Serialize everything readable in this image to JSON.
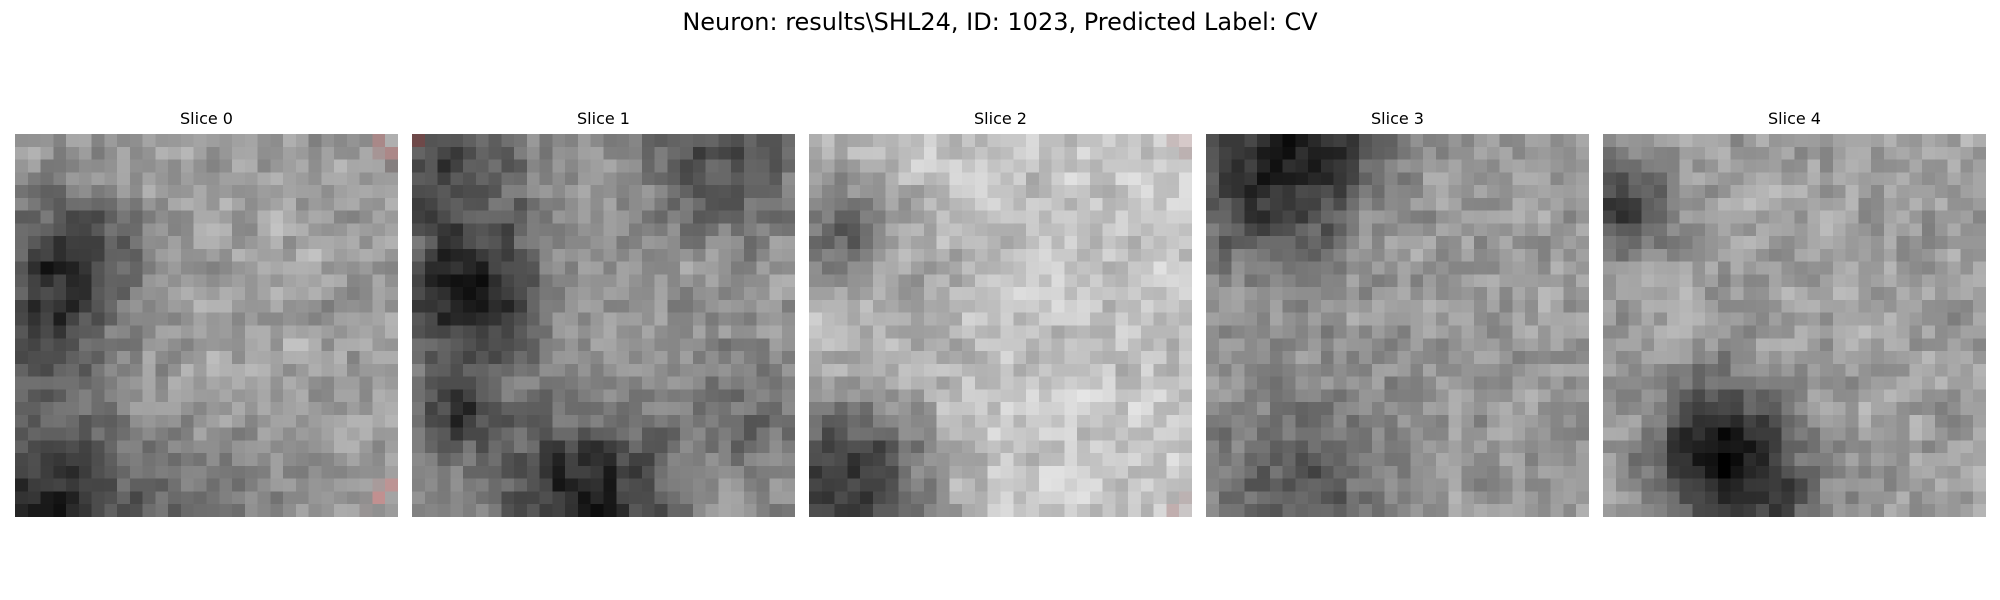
{
  "figure": {
    "title": "Neuron: results\\SHL24, ID: 1023, Predicted Label: CV"
  },
  "slices": [
    {
      "title": "Slice 0",
      "base": 0.62,
      "blobs": [
        [
          0.15,
          0.33,
          0.12,
          0.45
        ],
        [
          0.08,
          0.55,
          0.1,
          0.3
        ],
        [
          0.1,
          0.97,
          0.18,
          0.45
        ],
        [
          0.55,
          0.95,
          0.12,
          0.15
        ]
      ],
      "marks": [
        [
          0.94,
          0.02,
          0.99,
          0.06
        ],
        [
          0.93,
          0.96,
          0.99,
          0.91
        ]
      ],
      "seed": 11
    },
    {
      "title": "Slice 1",
      "base": 0.6,
      "blobs": [
        [
          0.15,
          0.42,
          0.13,
          0.48
        ],
        [
          0.1,
          0.08,
          0.14,
          0.3
        ],
        [
          0.8,
          0.06,
          0.14,
          0.3
        ],
        [
          0.45,
          0.95,
          0.16,
          0.48
        ],
        [
          0.12,
          0.72,
          0.08,
          0.35
        ],
        [
          0.88,
          0.75,
          0.12,
          0.18
        ]
      ],
      "marks": [
        [
          0.01,
          0.02,
          0.03,
          0.01
        ]
      ],
      "seed": 23
    },
    {
      "title": "Slice 2",
      "base": 0.77,
      "blobs": [
        [
          0.1,
          0.9,
          0.16,
          0.55
        ],
        [
          0.05,
          0.25,
          0.1,
          0.35
        ],
        [
          0.25,
          0.35,
          0.15,
          0.12
        ]
      ],
      "marks": [
        [
          0.96,
          0.02,
          0.98,
          0.03
        ],
        [
          0.96,
          0.98,
          0.98,
          0.96
        ]
      ],
      "seed": 37
    },
    {
      "title": "Slice 3",
      "base": 0.6,
      "blobs": [
        [
          0.15,
          0.12,
          0.16,
          0.35
        ],
        [
          0.3,
          0.03,
          0.12,
          0.25
        ],
        [
          0.25,
          0.92,
          0.16,
          0.28
        ]
      ],
      "marks": [],
      "seed": 53
    },
    {
      "title": "Slice 4",
      "base": 0.62,
      "blobs": [
        [
          0.3,
          0.8,
          0.12,
          0.45
        ],
        [
          0.05,
          0.2,
          0.08,
          0.4
        ],
        [
          0.4,
          0.98,
          0.14,
          0.3
        ]
      ],
      "marks": [],
      "seed": 71
    }
  ],
  "colors": {
    "annotation_red": "#ff0000",
    "colormap": "gray"
  }
}
